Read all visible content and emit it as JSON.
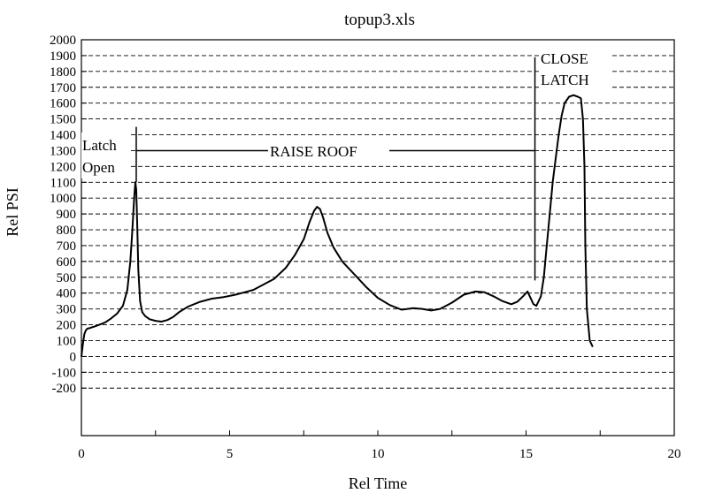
{
  "chart_data": {
    "type": "line",
    "title": "topup3.xls",
    "xlabel": "Rel Time",
    "ylabel": "Rel PSI",
    "xlim": [
      0,
      20
    ],
    "ylim": [
      -500,
      2000
    ],
    "x_ticks": [
      "0",
      "5",
      "10",
      "15",
      "20"
    ],
    "y_ticks": [
      "2000",
      "1900",
      "1800",
      "1700",
      "1600",
      "1500",
      "1400",
      "1300",
      "1200",
      "1100",
      "1000",
      "900",
      "800",
      "700",
      "600",
      "500",
      "400",
      "300",
      "200",
      "100",
      "0",
      "-100",
      "-200"
    ],
    "grid": "dashed horizontal",
    "annotations": {
      "latch_open_1": "Latch",
      "latch_open_2": "Open",
      "raise_roof": "RAISE ROOF",
      "close_latch_1": "CLOSE",
      "close_latch_2": "LATCH"
    },
    "markers": [
      {
        "x": 1.85,
        "y_from": 1100,
        "y_to": 1450
      },
      {
        "x": 15.3,
        "y_from": 480,
        "y_to": 1890
      }
    ],
    "series": [
      {
        "x": [
          0,
          0.05,
          0.1,
          0.15,
          0.2,
          0.3,
          0.45,
          0.6,
          0.8,
          1.0,
          1.2,
          1.4,
          1.55,
          1.65,
          1.72,
          1.78,
          1.82,
          1.85,
          1.88,
          1.92,
          1.98,
          2.05,
          2.15,
          2.3,
          2.5,
          2.7,
          2.9,
          3.1,
          3.3,
          3.6,
          4.0,
          4.4,
          4.8,
          5.2,
          5.5,
          5.8,
          6.1,
          6.5,
          6.9,
          7.2,
          7.5,
          7.7,
          7.85,
          7.95,
          8.05,
          8.15,
          8.3,
          8.5,
          8.8,
          9.2,
          9.6,
          10.0,
          10.4,
          10.8,
          11.2,
          11.5,
          11.8,
          12.1,
          12.5,
          12.9,
          13.3,
          13.6,
          13.9,
          14.2,
          14.5,
          14.7,
          14.9,
          15.05,
          15.15,
          15.25,
          15.35,
          15.5,
          15.6,
          15.7,
          15.8,
          15.9,
          16.0,
          16.1,
          16.2,
          16.3,
          16.45,
          16.6,
          16.75,
          16.85,
          16.92,
          16.97,
          17.0,
          17.05,
          17.15,
          17.25
        ],
        "y": [
          0,
          80,
          140,
          165,
          175,
          180,
          190,
          200,
          215,
          240,
          270,
          320,
          420,
          600,
          800,
          1000,
          1100,
          1050,
          850,
          550,
          350,
          280,
          255,
          235,
          225,
          220,
          230,
          250,
          280,
          315,
          345,
          365,
          375,
          390,
          405,
          420,
          450,
          490,
          560,
          640,
          740,
          850,
          920,
          945,
          930,
          880,
          780,
          690,
          600,
          520,
          440,
          370,
          325,
          295,
          305,
          300,
          290,
          300,
          340,
          390,
          410,
          405,
          380,
          350,
          330,
          345,
          380,
          410,
          370,
          330,
          320,
          380,
          500,
          700,
          900,
          1100,
          1250,
          1400,
          1520,
          1600,
          1640,
          1650,
          1640,
          1630,
          1500,
          1200,
          700,
          300,
          100,
          60
        ]
      }
    ]
  }
}
